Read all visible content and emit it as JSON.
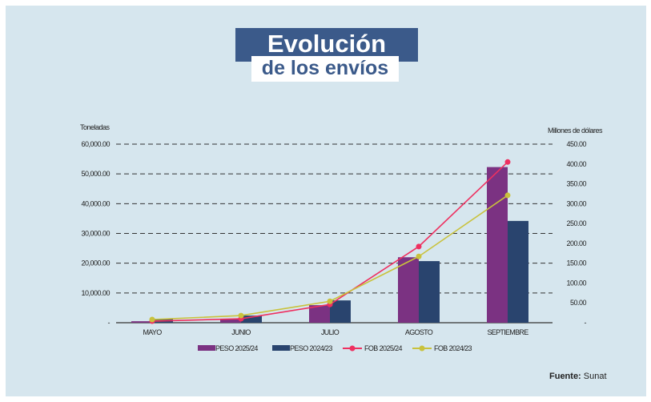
{
  "title_line1": "Evolución",
  "title_line2": "de los envíos",
  "source_label": "Fuente:",
  "source_value": "Sunat",
  "chart_data": {
    "type": "bar",
    "categories": [
      "MAYO",
      "JUNIO",
      "JULIO",
      "AGOSTO",
      "SEPTIEMBRE"
    ],
    "ylabel": "Toneladas",
    "y2label": "Millones de dólares",
    "ylim": [
      0,
      60000
    ],
    "y2lim": [
      0,
      450
    ],
    "yticks": [
      "-",
      "10,000.00",
      "20,000.00",
      "30,000.00",
      "40,000.00",
      "50,000.00",
      "60,000.00"
    ],
    "y2ticks": [
      "-",
      "50.00",
      "100.00",
      "150.00",
      "200.00",
      "250.00",
      "300.00",
      "350.00",
      "400.00",
      "450.00"
    ],
    "series": [
      {
        "name": "PESO 2025/24",
        "type": "bar",
        "axis": "left",
        "color": "#7b3282",
        "values": [
          500,
          1300,
          5900,
          22000,
          52300
        ]
      },
      {
        "name": "PESO 2024/23",
        "type": "bar",
        "axis": "left",
        "color": "#29446e",
        "values": [
          1300,
          2400,
          7500,
          20700,
          34200
        ]
      },
      {
        "name": "FOB 2025/24",
        "type": "line",
        "axis": "right",
        "color": "#ee3060",
        "values": [
          4,
          10,
          46,
          192,
          405
        ]
      },
      {
        "name": "FOB 2024/23",
        "type": "line",
        "axis": "right",
        "color": "#c9c23c",
        "values": [
          8,
          18,
          54,
          167,
          321
        ]
      }
    ],
    "grid": true,
    "legend": "bottom"
  }
}
